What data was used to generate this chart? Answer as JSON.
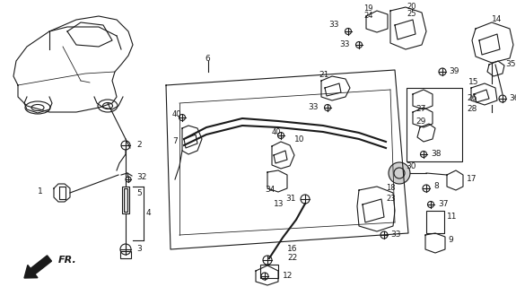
{
  "bg_color": "#ffffff",
  "line_color": "#1a1a1a",
  "fig_w": 5.75,
  "fig_h": 3.2,
  "dpi": 100
}
